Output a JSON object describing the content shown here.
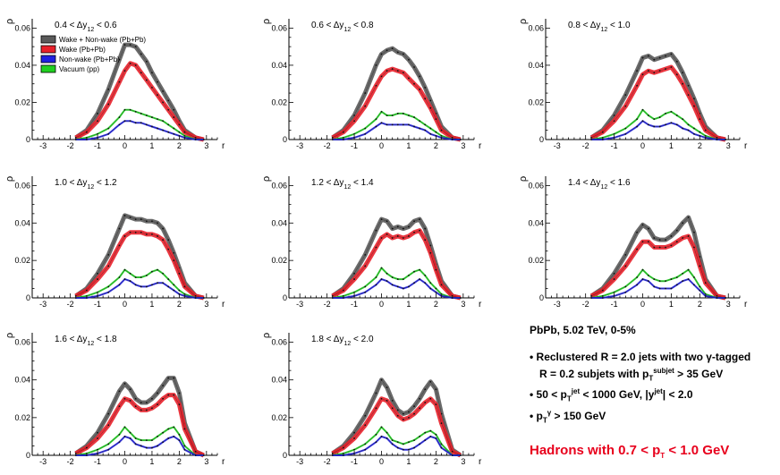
{
  "info": {
    "header": "PbPb, 5.02 TeV, 0-5%",
    "line1": "• Reclustered R = 2.0 jets with two   γ-tagged",
    "line2a": "R = 0.2 subjets with p",
    "line2_sup": "subjet",
    "line2_sub": "T",
    "line2b": " > 35 GeV",
    "line3a": "• 50 < p",
    "line3_sup": "jet",
    "line3_sub": "T",
    "line3b": " < 1000 GeV,  |y",
    "line3_sup2": "jet",
    "line3c": "| < 2.0",
    "line4a": "• p",
    "line4_sup": "γ",
    "line4_sub": "T",
    "line4b": " > 150 GeV",
    "red_a": "Hadrons with 0.7 < p",
    "red_sub": "T",
    "red_b": " < 1.0 GeV"
  },
  "colors": {
    "wake_nonwake": "#5a5a5a",
    "wake": "#e8202a",
    "nonwake": "#2020e0",
    "vacuum": "#20d020"
  },
  "chart_data": {
    "type": "line",
    "shared": {
      "xlabel": "r",
      "ylabel": "ρ",
      "xlim": [
        -3.4,
        3.4
      ],
      "ylim": [
        0,
        0.065
      ],
      "xticks": [
        -3,
        -2,
        -1,
        0,
        1,
        2,
        3
      ],
      "yticks": [
        0,
        0.02,
        0.04,
        0.06
      ],
      "ytick_labels": [
        "0",
        "0.02",
        "0.04",
        "0.06"
      ],
      "x": [
        -1.8,
        -1.4,
        -1.0,
        -0.6,
        -0.2,
        0.0,
        0.2,
        0.4,
        0.6,
        0.8,
        1.0,
        1.2,
        1.4,
        1.6,
        1.8,
        2.0,
        2.2,
        2.6,
        2.9
      ],
      "legend_entries": [
        "Wake + Non-wake (Pb+Pb)",
        "Wake (Pb+Pb)",
        "Non-wake (Pb+Pb)",
        "Vacuum (pp)"
      ],
      "legend_placement": "top-left of first panel"
    },
    "panels": [
      {
        "label_a": "0.4 <  Δy",
        "label_sub": "12",
        "label_b": " < 0.6",
        "series": [
          {
            "name": "Wake + Non-wake (Pb+Pb)",
            "values": [
              0.001,
              0.005,
              0.014,
              0.027,
              0.043,
              0.051,
              0.051,
              0.05,
              0.046,
              0.042,
              0.036,
              0.031,
              0.026,
              0.021,
              0.016,
              0.01,
              0.005,
              0.001,
              0.0
            ]
          },
          {
            "name": "Wake (Pb+Pb)",
            "values": [
              0.001,
              0.004,
              0.01,
              0.019,
              0.031,
              0.037,
              0.041,
              0.04,
              0.036,
              0.032,
              0.028,
              0.024,
              0.02,
              0.016,
              0.012,
              0.008,
              0.004,
              0.001,
              0.0
            ]
          },
          {
            "name": "Vacuum (pp)",
            "values": [
              0.0,
              0.001,
              0.003,
              0.006,
              0.012,
              0.016,
              0.016,
              0.015,
              0.014,
              0.013,
              0.012,
              0.011,
              0.01,
              0.008,
              0.006,
              0.004,
              0.002,
              0.0,
              0.0
            ]
          },
          {
            "name": "Non-wake (Pb+Pb)",
            "values": [
              0.0,
              0.0,
              0.001,
              0.003,
              0.008,
              0.01,
              0.01,
              0.009,
              0.009,
              0.008,
              0.007,
              0.006,
              0.005,
              0.004,
              0.003,
              0.002,
              0.001,
              0.0,
              0.0
            ]
          }
        ]
      },
      {
        "label_a": "0.6 <  Δy",
        "label_sub": "12",
        "label_b": " < 0.8",
        "series": [
          {
            "name": "Wake + Non-wake (Pb+Pb)",
            "values": [
              0.001,
              0.005,
              0.013,
              0.025,
              0.04,
              0.046,
              0.048,
              0.049,
              0.047,
              0.046,
              0.043,
              0.039,
              0.034,
              0.028,
              0.021,
              0.014,
              0.007,
              0.001,
              0.0
            ]
          },
          {
            "name": "Wake (Pb+Pb)",
            "values": [
              0.001,
              0.004,
              0.01,
              0.018,
              0.029,
              0.034,
              0.037,
              0.038,
              0.037,
              0.036,
              0.033,
              0.03,
              0.027,
              0.022,
              0.017,
              0.011,
              0.005,
              0.001,
              0.0
            ]
          },
          {
            "name": "Vacuum (pp)",
            "values": [
              0.0,
              0.001,
              0.003,
              0.006,
              0.011,
              0.015,
              0.013,
              0.013,
              0.014,
              0.014,
              0.013,
              0.012,
              0.01,
              0.008,
              0.006,
              0.004,
              0.002,
              0.0,
              0.0
            ]
          },
          {
            "name": "Non-wake (Pb+Pb)",
            "values": [
              0.0,
              0.0,
              0.001,
              0.003,
              0.007,
              0.009,
              0.008,
              0.008,
              0.008,
              0.008,
              0.008,
              0.007,
              0.006,
              0.005,
              0.003,
              0.002,
              0.001,
              0.0,
              0.0
            ]
          }
        ]
      },
      {
        "label_a": "0.8 <  Δy",
        "label_sub": "12",
        "label_b": " < 1.0",
        "series": [
          {
            "name": "Wake + Non-wake (Pb+Pb)",
            "values": [
              0.001,
              0.005,
              0.013,
              0.024,
              0.037,
              0.044,
              0.045,
              0.043,
              0.044,
              0.045,
              0.046,
              0.042,
              0.036,
              0.029,
              0.022,
              0.014,
              0.007,
              0.001,
              0.0
            ]
          },
          {
            "name": "Wake (Pb+Pb)",
            "values": [
              0.001,
              0.004,
              0.01,
              0.018,
              0.029,
              0.035,
              0.037,
              0.036,
              0.037,
              0.038,
              0.039,
              0.035,
              0.03,
              0.024,
              0.018,
              0.011,
              0.005,
              0.001,
              0.0
            ]
          },
          {
            "name": "Vacuum (pp)",
            "values": [
              0.0,
              0.001,
              0.003,
              0.006,
              0.011,
              0.016,
              0.013,
              0.011,
              0.012,
              0.014,
              0.015,
              0.013,
              0.011,
              0.008,
              0.006,
              0.004,
              0.002,
              0.0,
              0.0
            ]
          },
          {
            "name": "Non-wake (Pb+Pb)",
            "values": [
              0.0,
              0.0,
              0.001,
              0.003,
              0.007,
              0.01,
              0.008,
              0.007,
              0.007,
              0.008,
              0.009,
              0.008,
              0.006,
              0.005,
              0.003,
              0.002,
              0.001,
              0.0,
              0.0
            ]
          }
        ]
      },
      {
        "label_a": "1.0 <  Δy",
        "label_sub": "12",
        "label_b": " < 1.2",
        "series": [
          {
            "name": "Wake + Non-wake (Pb+Pb)",
            "values": [
              0.001,
              0.005,
              0.013,
              0.023,
              0.037,
              0.044,
              0.043,
              0.042,
              0.042,
              0.041,
              0.041,
              0.04,
              0.037,
              0.031,
              0.024,
              0.016,
              0.008,
              0.001,
              0.0
            ]
          },
          {
            "name": "Wake (Pb+Pb)",
            "values": [
              0.001,
              0.004,
              0.01,
              0.017,
              0.028,
              0.033,
              0.035,
              0.035,
              0.035,
              0.034,
              0.034,
              0.033,
              0.031,
              0.026,
              0.02,
              0.013,
              0.006,
              0.001,
              0.0
            ]
          },
          {
            "name": "Vacuum (pp)",
            "values": [
              0.0,
              0.001,
              0.003,
              0.006,
              0.011,
              0.015,
              0.013,
              0.011,
              0.011,
              0.012,
              0.014,
              0.015,
              0.013,
              0.01,
              0.007,
              0.004,
              0.002,
              0.0,
              0.0
            ]
          },
          {
            "name": "Non-wake (Pb+Pb)",
            "values": [
              0.0,
              0.0,
              0.001,
              0.003,
              0.007,
              0.01,
              0.009,
              0.007,
              0.006,
              0.006,
              0.007,
              0.008,
              0.008,
              0.006,
              0.004,
              0.002,
              0.001,
              0.0,
              0.0
            ]
          }
        ]
      },
      {
        "label_a": "1.2 <  Δy",
        "label_sub": "12",
        "label_b": " < 1.4",
        "series": [
          {
            "name": "Wake + Non-wake (Pb+Pb)",
            "values": [
              0.001,
              0.005,
              0.013,
              0.023,
              0.036,
              0.042,
              0.041,
              0.037,
              0.038,
              0.037,
              0.038,
              0.041,
              0.042,
              0.037,
              0.028,
              0.018,
              0.009,
              0.001,
              0.0
            ]
          },
          {
            "name": "Wake (Pb+Pb)",
            "values": [
              0.001,
              0.004,
              0.01,
              0.017,
              0.027,
              0.032,
              0.034,
              0.032,
              0.033,
              0.032,
              0.033,
              0.035,
              0.036,
              0.031,
              0.024,
              0.015,
              0.007,
              0.001,
              0.0
            ]
          },
          {
            "name": "Vacuum (pp)",
            "values": [
              0.0,
              0.001,
              0.003,
              0.006,
              0.011,
              0.016,
              0.013,
              0.011,
              0.01,
              0.01,
              0.012,
              0.014,
              0.015,
              0.012,
              0.008,
              0.005,
              0.002,
              0.0,
              0.0
            ]
          },
          {
            "name": "Non-wake (Pb+Pb)",
            "values": [
              0.0,
              0.0,
              0.001,
              0.003,
              0.007,
              0.01,
              0.009,
              0.007,
              0.006,
              0.005,
              0.006,
              0.008,
              0.01,
              0.008,
              0.005,
              0.003,
              0.001,
              0.0,
              0.0
            ]
          }
        ]
      },
      {
        "label_a": "1.4 <  Δy",
        "label_sub": "12",
        "label_b": " < 1.6",
        "series": [
          {
            "name": "Wake + Non-wake (Pb+Pb)",
            "values": [
              0.001,
              0.005,
              0.013,
              0.023,
              0.035,
              0.039,
              0.037,
              0.032,
              0.031,
              0.031,
              0.033,
              0.036,
              0.04,
              0.043,
              0.035,
              0.022,
              0.01,
              0.001,
              0.0
            ]
          },
          {
            "name": "Wake (Pb+Pb)",
            "values": [
              0.001,
              0.004,
              0.01,
              0.017,
              0.026,
              0.03,
              0.03,
              0.027,
              0.027,
              0.027,
              0.028,
              0.03,
              0.032,
              0.033,
              0.027,
              0.017,
              0.008,
              0.001,
              0.0
            ]
          },
          {
            "name": "Vacuum (pp)",
            "values": [
              0.0,
              0.001,
              0.003,
              0.006,
              0.011,
              0.015,
              0.012,
              0.01,
              0.009,
              0.009,
              0.01,
              0.011,
              0.013,
              0.015,
              0.011,
              0.006,
              0.002,
              0.0,
              0.0
            ]
          },
          {
            "name": "Non-wake (Pb+Pb)",
            "values": [
              0.0,
              0.0,
              0.001,
              0.003,
              0.007,
              0.01,
              0.009,
              0.006,
              0.005,
              0.005,
              0.005,
              0.007,
              0.009,
              0.01,
              0.007,
              0.004,
              0.001,
              0.0,
              0.0
            ]
          }
        ]
      },
      {
        "label_a": "1.6 <  Δy",
        "label_sub": "12",
        "label_b": " < 1.8",
        "series": [
          {
            "name": "Wake + Non-wake (Pb+Pb)",
            "values": [
              0.001,
              0.005,
              0.012,
              0.022,
              0.034,
              0.038,
              0.035,
              0.03,
              0.028,
              0.028,
              0.03,
              0.033,
              0.037,
              0.041,
              0.041,
              0.033,
              0.017,
              0.002,
              0.0
            ]
          },
          {
            "name": "Wake (Pb+Pb)",
            "values": [
              0.001,
              0.004,
              0.009,
              0.016,
              0.026,
              0.03,
              0.029,
              0.026,
              0.024,
              0.024,
              0.025,
              0.027,
              0.03,
              0.032,
              0.032,
              0.027,
              0.014,
              0.002,
              0.0
            ]
          },
          {
            "name": "Vacuum (pp)",
            "values": [
              0.0,
              0.001,
              0.003,
              0.006,
              0.011,
              0.015,
              0.012,
              0.009,
              0.008,
              0.008,
              0.008,
              0.01,
              0.012,
              0.014,
              0.015,
              0.011,
              0.005,
              0.0,
              0.0
            ]
          },
          {
            "name": "Non-wake (Pb+Pb)",
            "values": [
              0.0,
              0.0,
              0.001,
              0.003,
              0.007,
              0.01,
              0.009,
              0.006,
              0.005,
              0.004,
              0.004,
              0.005,
              0.007,
              0.009,
              0.01,
              0.008,
              0.003,
              0.0,
              0.0
            ]
          }
        ]
      },
      {
        "label_a": "1.8 <  Δy",
        "label_sub": "12",
        "label_b": " < 2.0",
        "series": [
          {
            "name": "Wake + Non-wake (Pb+Pb)",
            "values": [
              0.001,
              0.005,
              0.012,
              0.021,
              0.033,
              0.04,
              0.036,
              0.029,
              0.024,
              0.022,
              0.023,
              0.026,
              0.03,
              0.035,
              0.039,
              0.035,
              0.022,
              0.003,
              0.0
            ]
          },
          {
            "name": "Wake (Pb+Pb)",
            "values": [
              0.001,
              0.004,
              0.009,
              0.016,
              0.025,
              0.03,
              0.029,
              0.025,
              0.021,
              0.019,
              0.02,
              0.022,
              0.025,
              0.028,
              0.03,
              0.027,
              0.017,
              0.002,
              0.0
            ]
          },
          {
            "name": "Vacuum (pp)",
            "values": [
              0.0,
              0.001,
              0.003,
              0.006,
              0.011,
              0.015,
              0.012,
              0.008,
              0.007,
              0.006,
              0.007,
              0.008,
              0.01,
              0.012,
              0.013,
              0.011,
              0.006,
              0.0,
              0.0
            ]
          },
          {
            "name": "Non-wake (Pb+Pb)",
            "values": [
              0.0,
              0.0,
              0.001,
              0.003,
              0.007,
              0.01,
              0.009,
              0.006,
              0.004,
              0.003,
              0.003,
              0.004,
              0.006,
              0.008,
              0.01,
              0.009,
              0.004,
              0.0,
              0.0
            ]
          }
        ]
      }
    ]
  }
}
